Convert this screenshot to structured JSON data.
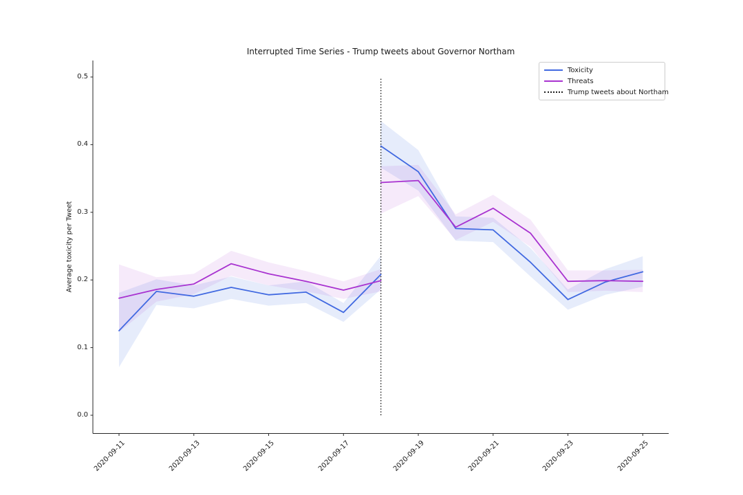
{
  "figure": {
    "title": "Interrupted Time Series - Trump tweets about Governor Northam",
    "ylabel": "Average toxicity per Tweet",
    "background_color": "#ffffff",
    "text_color": "#1a1a1a",
    "spine_color": "#262626"
  },
  "legend": {
    "position": "upper right",
    "items": [
      {
        "label": "Toxicity",
        "style": "solid",
        "color": "#4169e1"
      },
      {
        "label": "Threats",
        "style": "solid",
        "color": "#a832d0"
      },
      {
        "label": "Trump tweets about Northam",
        "style": "dotted",
        "color": "#1a1a1a"
      }
    ]
  },
  "chart_data": {
    "type": "line",
    "title": "Interrupted Time Series - Trump tweets about Governor Northam",
    "xlabel": "",
    "ylabel": "Average toxicity per Tweet",
    "grid": false,
    "ylim": [
      0.0,
      0.5
    ],
    "yticks": [
      0.0,
      0.1,
      0.2,
      0.3,
      0.4,
      0.5
    ],
    "ytick_labels": [
      "0.0",
      "0.1",
      "0.2",
      "0.3",
      "0.4",
      "0.5"
    ],
    "x": [
      "2020-09-11",
      "2020-09-12",
      "2020-09-13",
      "2020-09-14",
      "2020-09-15",
      "2020-09-16",
      "2020-09-17",
      "2020-09-18",
      "2020-09-19",
      "2020-09-20",
      "2020-09-21",
      "2020-09-22",
      "2020-09-23",
      "2020-09-24",
      "2020-09-25"
    ],
    "x_tick_indices": [
      0,
      2,
      4,
      6,
      8,
      10,
      12,
      14
    ],
    "x_tick_labels": [
      "2020-09-11",
      "2020-09-13",
      "2020-09-15",
      "2020-09-17",
      "2020-09-19",
      "2020-09-21",
      "2020-09-23",
      "2020-09-25"
    ],
    "intervention": {
      "x": "2020-09-18",
      "x_index": 7,
      "label": "Trump tweets about Northam",
      "line_style": "dotted",
      "color": "#1a1a1a",
      "y_span": [
        0.0,
        0.5
      ]
    },
    "series": [
      {
        "name": "Toxicity (pre-intervention)",
        "legend_name": "Toxicity",
        "color": "#4169e1",
        "band_color": "rgba(65,105,225,0.13)",
        "x_start_index": 0,
        "values": [
          0.125,
          0.183,
          0.176,
          0.189,
          0.178,
          0.182,
          0.152,
          0.208
        ],
        "ci_lower": [
          0.071,
          0.163,
          0.158,
          0.172,
          0.162,
          0.166,
          0.138,
          0.186
        ],
        "ci_upper": [
          0.181,
          0.201,
          0.192,
          0.205,
          0.192,
          0.198,
          0.166,
          0.236
        ]
      },
      {
        "name": "Toxicity (post-intervention)",
        "legend_name": "Toxicity",
        "color": "#4169e1",
        "band_color": "rgba(65,105,225,0.13)",
        "x_start_index": 7,
        "values": [
          0.398,
          0.36,
          0.276,
          0.274,
          0.226,
          0.171,
          0.197,
          0.212
        ],
        "ci_lower": [
          0.366,
          0.332,
          0.258,
          0.256,
          0.205,
          0.156,
          0.178,
          0.19
        ],
        "ci_upper": [
          0.435,
          0.392,
          0.294,
          0.292,
          0.247,
          0.186,
          0.216,
          0.235
        ]
      },
      {
        "name": "Threats (pre-intervention)",
        "legend_name": "Threats",
        "color": "#a832d0",
        "band_color": "rgba(168,50,208,0.10)",
        "x_start_index": 0,
        "values": [
          0.173,
          0.186,
          0.194,
          0.224,
          0.209,
          0.198,
          0.185,
          0.199
        ],
        "ci_lower": [
          0.123,
          0.168,
          0.179,
          0.206,
          0.192,
          0.183,
          0.172,
          0.183
        ],
        "ci_upper": [
          0.223,
          0.204,
          0.209,
          0.243,
          0.226,
          0.213,
          0.198,
          0.216
        ]
      },
      {
        "name": "Threats (post-intervention)",
        "legend_name": "Threats",
        "color": "#a832d0",
        "band_color": "rgba(168,50,208,0.10)",
        "x_start_index": 7,
        "values": [
          0.344,
          0.347,
          0.278,
          0.306,
          0.269,
          0.198,
          0.199,
          0.198
        ],
        "ci_lower": [
          0.298,
          0.324,
          0.259,
          0.286,
          0.249,
          0.182,
          0.184,
          0.182
        ],
        "ci_upper": [
          0.368,
          0.37,
          0.297,
          0.326,
          0.289,
          0.214,
          0.214,
          0.215
        ]
      }
    ]
  }
}
